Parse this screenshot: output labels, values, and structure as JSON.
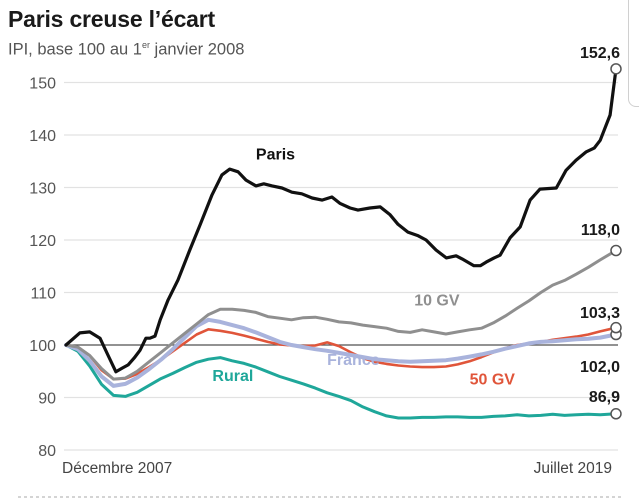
{
  "chart_data": {
    "type": "line",
    "title": "Paris creuse l’écart",
    "subtitle": {
      "prefix": "IPI, base 100 au 1",
      "superscript": "er",
      "suffix": " janvier 2008"
    },
    "xlabel": "",
    "ylabel": "",
    "x_start_label": "Décembre 2007",
    "x_end_label": "Juillet 2019",
    "x_unit": "months since December 2007",
    "x_range": [
      0,
      139
    ],
    "ylim": [
      80,
      153
    ],
    "yticks": [
      80,
      90,
      100,
      110,
      120,
      130,
      140,
      150
    ],
    "ytick_labels": [
      "80",
      "90",
      "100",
      "110",
      "120",
      "130",
      "140",
      "150"
    ],
    "reference_line": 100,
    "grid": true,
    "series": [
      {
        "name": "Paris",
        "color": "#111111",
        "end_label": "152,6",
        "x": [
          0,
          3.5,
          6,
          8.6,
          10.6,
          12.6,
          14.2,
          15.7,
          17.2,
          18.7,
          20.2,
          21.2,
          22.5,
          23.8,
          25.8,
          28.3,
          31.3,
          33.9,
          36.9,
          39.4,
          41.4,
          43.5,
          45.5,
          48,
          50,
          52.1,
          54.6,
          57.1,
          59.6,
          62.2,
          64.7,
          67.2,
          69.2,
          71.8,
          73.8,
          76.8,
          79.4,
          81.9,
          83.9,
          86.4,
          89,
          91,
          93.5,
          96.1,
          98.6,
          100.1,
          103.1,
          104.7,
          106.2,
          108.2,
          109.7,
          112.2,
          114.8,
          117.3,
          119.8,
          123.9,
          126.4,
          128.9,
          131.5,
          133.5,
          135,
          137.5,
          139
        ],
        "values": [
          100,
          102.3,
          102.5,
          101.3,
          98.1,
          94.9,
          95.6,
          96.2,
          97.5,
          99,
          101.3,
          101.3,
          101.7,
          104.8,
          108.6,
          112.4,
          118.1,
          122.9,
          128.6,
          132.4,
          133.5,
          133,
          131.4,
          130.3,
          130.7,
          130.3,
          129.9,
          129.1,
          128.8,
          128,
          127.6,
          128.2,
          127,
          126.1,
          125.7,
          126.1,
          126.3,
          124.8,
          123,
          121.5,
          120.8,
          120,
          118.1,
          116.6,
          117,
          116.4,
          115.1,
          115.1,
          115.8,
          116.6,
          117.1,
          120.4,
          122.5,
          127.6,
          129.7,
          129.9,
          133.3,
          135.2,
          136.8,
          137.5,
          139,
          143.8,
          152.6
        ]
      },
      {
        "name": "10 GV",
        "color": "#8f8f8f",
        "end_label": "118,0",
        "x": [
          0,
          3,
          6,
          9,
          12,
          15,
          18,
          21,
          24,
          27,
          30,
          33,
          36,
          39,
          42,
          45,
          48,
          51,
          54,
          57,
          60,
          63,
          66,
          69,
          72,
          75,
          78,
          81,
          84,
          87,
          90,
          93,
          96,
          99,
          102,
          105,
          108,
          111,
          114,
          117,
          120,
          123,
          126,
          129,
          132,
          135,
          139
        ],
        "values": [
          100,
          99.6,
          98,
          95.5,
          93.5,
          93.7,
          95,
          96.8,
          98.6,
          100.4,
          102.2,
          104,
          105.8,
          106.8,
          106.8,
          106.6,
          106.2,
          105.4,
          105.1,
          104.8,
          105.2,
          105.3,
          104.9,
          104.4,
          104.2,
          103.8,
          103.5,
          103.2,
          102.6,
          102.4,
          102.9,
          102.5,
          102.1,
          102.5,
          102.9,
          103.2,
          104.2,
          105.5,
          107,
          108.4,
          110,
          111.4,
          112.3,
          113.5,
          114.8,
          116.2,
          118.0
        ]
      },
      {
        "name": "France",
        "color": "#a9b3dc",
        "end_label": "102,0",
        "x": [
          0,
          3,
          6,
          9,
          12,
          15,
          18,
          21,
          24,
          27,
          30,
          33,
          36,
          39,
          42,
          45,
          48,
          51,
          54,
          57,
          60,
          63,
          66,
          69,
          72,
          75,
          78,
          81,
          84,
          87,
          90,
          93,
          96,
          99,
          102,
          105,
          108,
          111,
          114,
          117,
          120,
          123,
          126,
          129,
          132,
          135,
          139
        ],
        "values": [
          100,
          99.2,
          97,
          94,
          92.2,
          92.6,
          93.8,
          95.4,
          97.2,
          99.2,
          101.4,
          103.6,
          104.8,
          104.4,
          103.8,
          103.2,
          102.4,
          101.5,
          100.6,
          100,
          99.6,
          99.2,
          98.9,
          98.5,
          98.1,
          97.7,
          97.3,
          97.1,
          96.9,
          96.8,
          96.9,
          97,
          97.1,
          97.4,
          97.8,
          98.2,
          98.7,
          99.3,
          99.8,
          100.3,
          100.6,
          100.7,
          100.9,
          101.1,
          101.2,
          101.4,
          102.0
        ]
      },
      {
        "name": "50 GV",
        "color": "#e0553a",
        "end_label": "103,3",
        "x": [
          0,
          3,
          6,
          9,
          12,
          15,
          18,
          21,
          24,
          27,
          30,
          33,
          36,
          39,
          42,
          45,
          48,
          51,
          54,
          57,
          60,
          63,
          66,
          69,
          72,
          75,
          78,
          81,
          84,
          87,
          90,
          93,
          96,
          99,
          102,
          105,
          108,
          111,
          114,
          117,
          120,
          123,
          126,
          129,
          132,
          135,
          139
        ],
        "values": [
          100,
          99.6,
          98,
          95.2,
          93.5,
          93.6,
          94.5,
          95.8,
          97.2,
          98.8,
          100.4,
          102,
          103,
          102.7,
          102.3,
          101.8,
          101.2,
          100.6,
          100.1,
          99.9,
          99.8,
          99.9,
          100.5,
          99.8,
          98.6,
          97.5,
          96.8,
          96.4,
          96.1,
          95.9,
          95.8,
          95.8,
          95.9,
          96.3,
          96.9,
          97.7,
          98.6,
          99.4,
          100,
          100.3,
          100.6,
          101,
          101.3,
          101.6,
          102,
          102.6,
          103.3
        ]
      },
      {
        "name": "Rural",
        "color": "#1fa79a",
        "end_label": "86,9",
        "x": [
          0,
          3,
          6,
          9,
          12,
          15,
          18,
          21,
          24,
          27,
          30,
          33,
          36,
          39,
          42,
          45,
          48,
          51,
          54,
          57,
          60,
          63,
          66,
          69,
          72,
          75,
          78,
          81,
          84,
          87,
          90,
          93,
          96,
          99,
          102,
          105,
          108,
          111,
          114,
          117,
          120,
          123,
          126,
          129,
          132,
          135,
          139
        ],
        "values": [
          100,
          98.8,
          96,
          92.5,
          90.4,
          90.2,
          91,
          92.3,
          93.6,
          94.6,
          95.7,
          96.7,
          97.3,
          97.6,
          97,
          96.5,
          95.8,
          94.9,
          94,
          93.3,
          92.6,
          91.8,
          90.9,
          90.2,
          89.4,
          88.2,
          87.3,
          86.5,
          86.1,
          86.1,
          86.2,
          86.2,
          86.3,
          86.3,
          86.2,
          86.2,
          86.4,
          86.5,
          86.7,
          86.5,
          86.6,
          86.8,
          86.6,
          86.7,
          86.8,
          86.7,
          86.9
        ]
      }
    ],
    "inline_labels": [
      {
        "series": "Paris",
        "text": "Paris",
        "x": 48,
        "y": 135.3
      },
      {
        "series": "10 GV",
        "text": "10 GV",
        "x": 88,
        "y": 107.5
      },
      {
        "series": "France",
        "text": "France",
        "x": 66,
        "y": 96.2
      },
      {
        "series": "Rural",
        "text": "Rural",
        "x": 37,
        "y": 93.1
      },
      {
        "series": "50 GV",
        "text": "50 GV",
        "x": 102,
        "y": 92.5
      }
    ]
  }
}
